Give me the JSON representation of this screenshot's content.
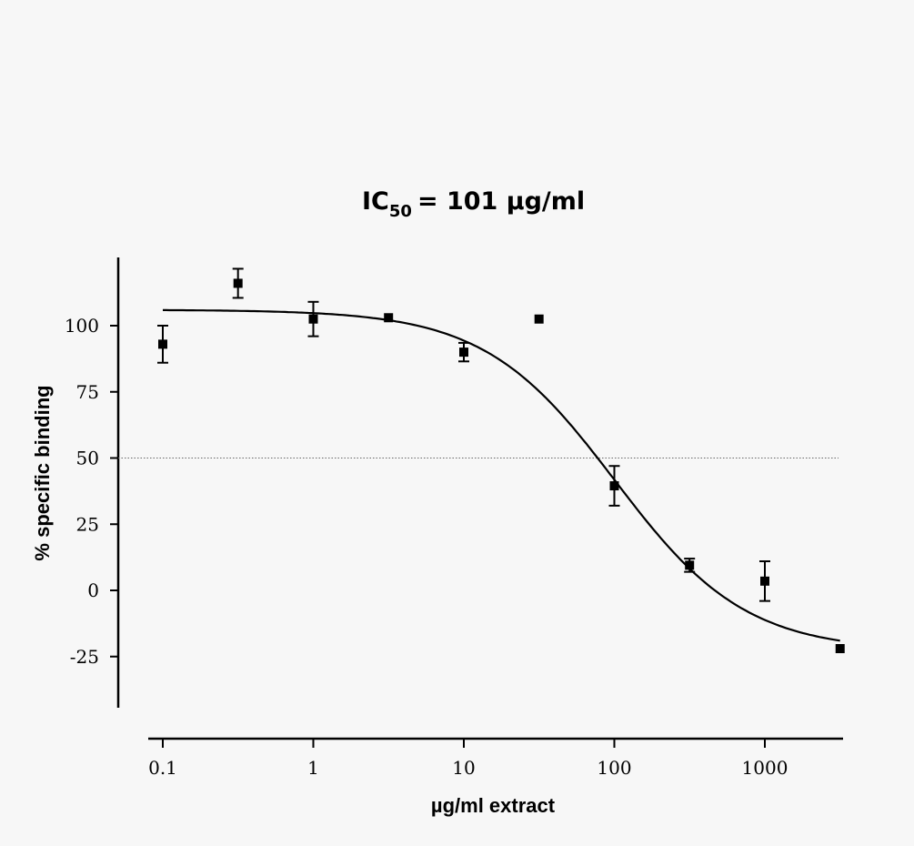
{
  "chart_data": {
    "type": "scatter",
    "annotation": {
      "prefix": "IC",
      "subscript": "50",
      "rest": "=  101 µg/ml"
    },
    "xlabel": "µg/ml extract",
    "ylabel": "% specific binding",
    "x_scale": "log",
    "xlim": [
      0.1,
      3162
    ],
    "ylim": [
      -45,
      125
    ],
    "x_ticks": [
      {
        "value": 0.1,
        "label": "0.1"
      },
      {
        "value": 1,
        "label": "1"
      },
      {
        "value": 10,
        "label": "10"
      },
      {
        "value": 100,
        "label": "100"
      },
      {
        "value": 1000,
        "label": "1000"
      }
    ],
    "y_ticks": [
      {
        "value": 100,
        "label": "100"
      },
      {
        "value": 75,
        "label": "75"
      },
      {
        "value": 50,
        "label": "50"
      },
      {
        "value": 25,
        "label": "25"
      },
      {
        "value": 0,
        "label": "0"
      },
      {
        "value": -25,
        "label": "-25"
      }
    ],
    "reference_line": {
      "y": 50,
      "style": "dotted"
    },
    "points": [
      {
        "x": 0.1,
        "y": 93,
        "err": 7
      },
      {
        "x": 0.316,
        "y": 116,
        "err": 5.5
      },
      {
        "x": 1,
        "y": 102.5,
        "err": 6.5
      },
      {
        "x": 3.16,
        "y": 103,
        "err": 0
      },
      {
        "x": 10,
        "y": 90,
        "err": 3.5
      },
      {
        "x": 31.6,
        "y": 102.5,
        "err": 0
      },
      {
        "x": 100,
        "y": 39.5,
        "err": 7.5
      },
      {
        "x": 316,
        "y": 9.5,
        "err": 2.5
      },
      {
        "x": 1000,
        "y": 3.5,
        "err": 7.5
      },
      {
        "x": 3162,
        "y": -22,
        "err": 0
      }
    ],
    "fit": {
      "model": "sigmoidal dose-response",
      "top": 106,
      "bottom": -23,
      "logIC50": 2.004,
      "hill": -1
    }
  }
}
